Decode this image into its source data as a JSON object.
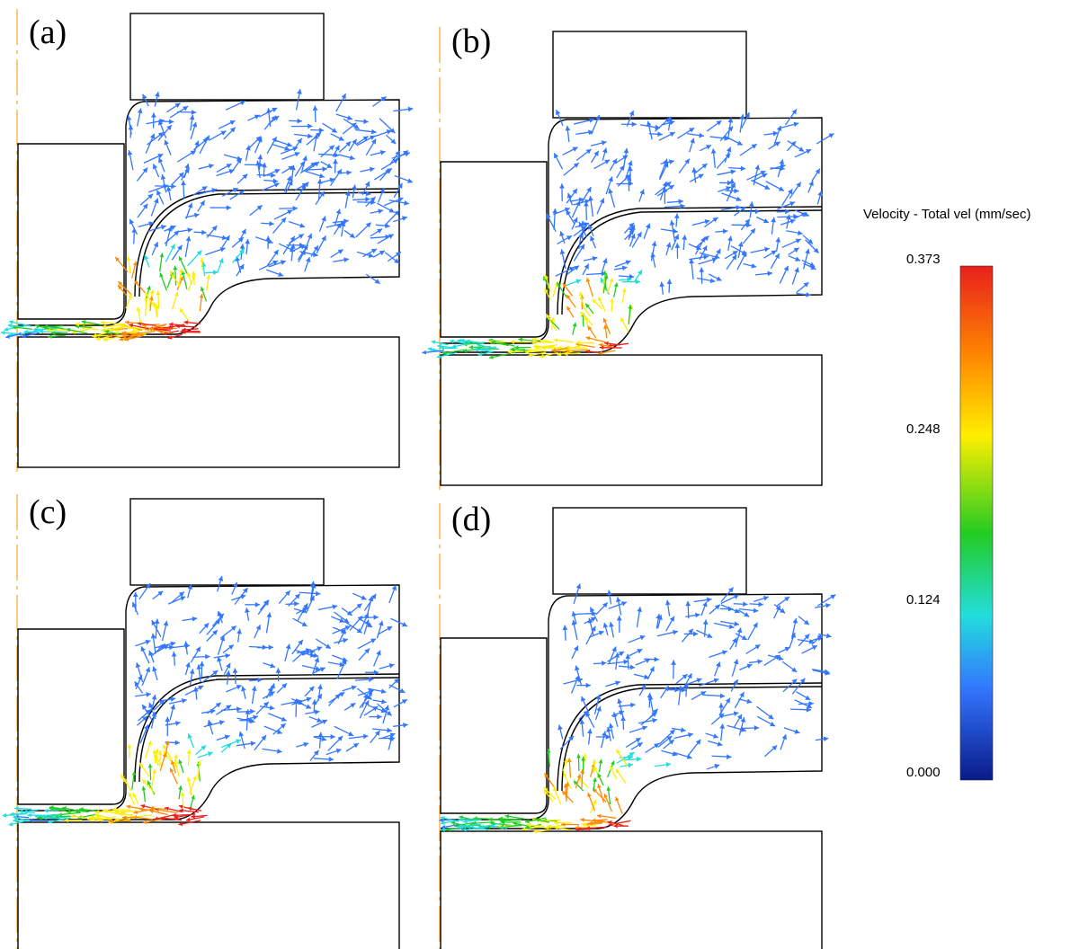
{
  "panels": [
    {
      "label": "(a)",
      "seed": 11,
      "density": 1.0,
      "hot": 1.0
    },
    {
      "label": "(b)",
      "seed": 23,
      "density": 0.9,
      "hot": 0.9
    },
    {
      "label": "(c)",
      "seed": 37,
      "density": 0.95,
      "hot": 1.0
    },
    {
      "label": "(d)",
      "seed": 53,
      "density": 0.75,
      "hot": 0.85
    }
  ],
  "legend": {
    "title": "Velocity - Total vel (mm/sec)",
    "ticks": [
      "0.373",
      "0.248",
      "0.124",
      "0.000"
    ],
    "max": 0.373,
    "min": 0.0,
    "colors": [
      "#e8201c",
      "#ff8a00",
      "#ffee00",
      "#22cc22",
      "#22dddd",
      "#3377ff",
      "#0a1a8a"
    ]
  }
}
